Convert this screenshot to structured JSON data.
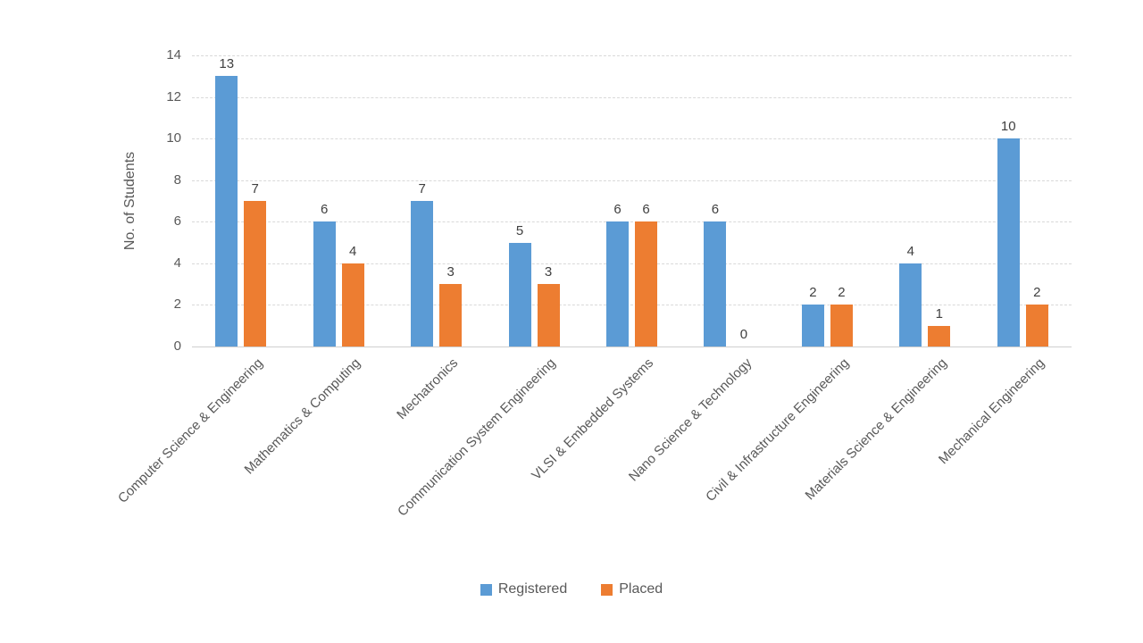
{
  "chart_data": {
    "type": "bar",
    "title": "",
    "xlabel": "",
    "ylabel": "No. of Students",
    "ylim": [
      0,
      14
    ],
    "y_ticks": [
      0,
      2,
      4,
      6,
      8,
      10,
      12,
      14
    ],
    "grid": true,
    "data_labels": true,
    "legend_position": "bottom",
    "categories": [
      "Computer Science & Engineering",
      "Mathematics & Computing",
      "Mechatronics",
      "Communication System Engineering",
      "VLSI & Embedded Systems",
      "Nano Science & Technology",
      "Civil & Infrastructure Engineering",
      "Materials Science & Engineering",
      "Mechanical Engineering"
    ],
    "series": [
      {
        "name": "Registered",
        "color": "#5B9BD5",
        "values": [
          13,
          6,
          7,
          5,
          6,
          6,
          2,
          4,
          10
        ]
      },
      {
        "name": "Placed",
        "color": "#ED7D31",
        "values": [
          7,
          4,
          3,
          3,
          6,
          0,
          2,
          1,
          2
        ]
      }
    ],
    "colors": {
      "gridline": "#D9D9D9",
      "axis_line": "#CFCFCF",
      "tick_text": "#595959",
      "value_text": "#404040"
    }
  }
}
